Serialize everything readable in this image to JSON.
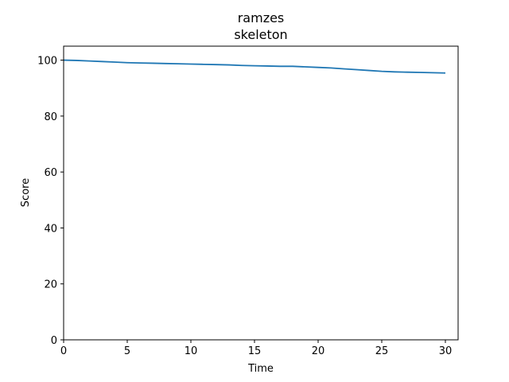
{
  "chart_data": {
    "type": "line",
    "title": "ramzes",
    "subtitle": "skeleton",
    "xlabel": "Time",
    "ylabel": "Score",
    "xlim": [
      0,
      31
    ],
    "ylim": [
      0,
      105
    ],
    "xticks": [
      0,
      5,
      10,
      15,
      20,
      25,
      30
    ],
    "yticks": [
      0,
      20,
      40,
      60,
      80,
      100
    ],
    "grid": false,
    "line_color": "#1f77b4",
    "series": [
      {
        "x": [
          0,
          1,
          2,
          3,
          4,
          5,
          6,
          7,
          8,
          9,
          10,
          11,
          12,
          13,
          14,
          15,
          16,
          17,
          18,
          19,
          20,
          21,
          22,
          23,
          24,
          25,
          26,
          27,
          28,
          29,
          30
        ],
        "values": [
          100.0,
          99.9,
          99.7,
          99.5,
          99.3,
          99.1,
          99.0,
          98.9,
          98.8,
          98.7,
          98.6,
          98.5,
          98.4,
          98.3,
          98.1,
          98.0,
          97.9,
          97.8,
          97.8,
          97.6,
          97.4,
          97.2,
          96.9,
          96.6,
          96.3,
          96.0,
          95.8,
          95.7,
          95.6,
          95.5,
          95.4
        ]
      }
    ]
  }
}
